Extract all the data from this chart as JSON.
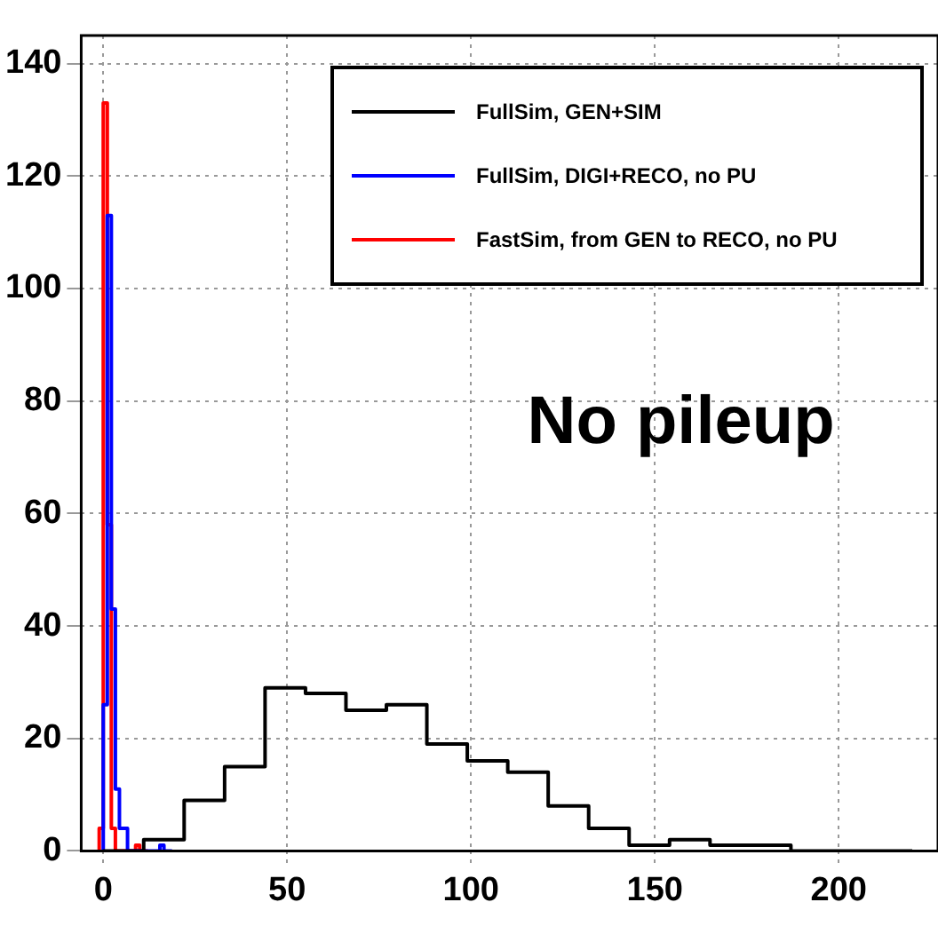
{
  "chart_data": {
    "type": "step",
    "xlim": [
      -6,
      227
    ],
    "ylim": [
      0,
      145
    ],
    "xticks": [
      0,
      50,
      100,
      150,
      200
    ],
    "yticks": [
      0,
      20,
      40,
      60,
      80,
      100,
      120,
      140
    ],
    "grid": true,
    "legend": "top right",
    "line_style": "solid",
    "marker": "none",
    "annotations": [
      "No pileup"
    ],
    "series": [
      {
        "name": "FullSim, GEN+SIM",
        "color": "#000000",
        "x": [
          0,
          11,
          22,
          33,
          44,
          55,
          66,
          77,
          88,
          99,
          110,
          121,
          132,
          143,
          154,
          165,
          176,
          187,
          198,
          209,
          220
        ],
        "values": [
          0,
          0,
          2,
          9,
          15,
          29,
          28,
          25,
          26,
          19,
          16,
          14,
          8,
          4,
          1,
          2,
          1,
          1,
          0,
          0,
          0
        ]
      },
      {
        "name": "FullSim, DIGI+RECO, no PU",
        "color": "#0000ff",
        "x": [
          0,
          1.1,
          2.2,
          3.3,
          4.4,
          5.5,
          6.6,
          7.7,
          8.8,
          9.9,
          11,
          12.1,
          13.2,
          14.3,
          15.4,
          16.5,
          17.6,
          18.7
        ],
        "values": [
          0,
          26,
          113,
          43,
          11,
          4,
          4,
          0,
          0,
          0,
          0,
          0,
          0,
          0,
          0,
          1,
          0,
          0
        ]
      },
      {
        "name": "FastSim, from GEN to RECO, no PU",
        "color": "#ff0000",
        "x": [
          -1.1,
          0,
          1.1,
          2.2,
          3.3,
          4.4,
          5.5,
          6.6,
          7.7,
          8.8,
          9.9,
          11,
          12.1
        ],
        "values": [
          0,
          4,
          133,
          58,
          4,
          0,
          0,
          0,
          0,
          0,
          1,
          0,
          0
        ]
      }
    ]
  }
}
